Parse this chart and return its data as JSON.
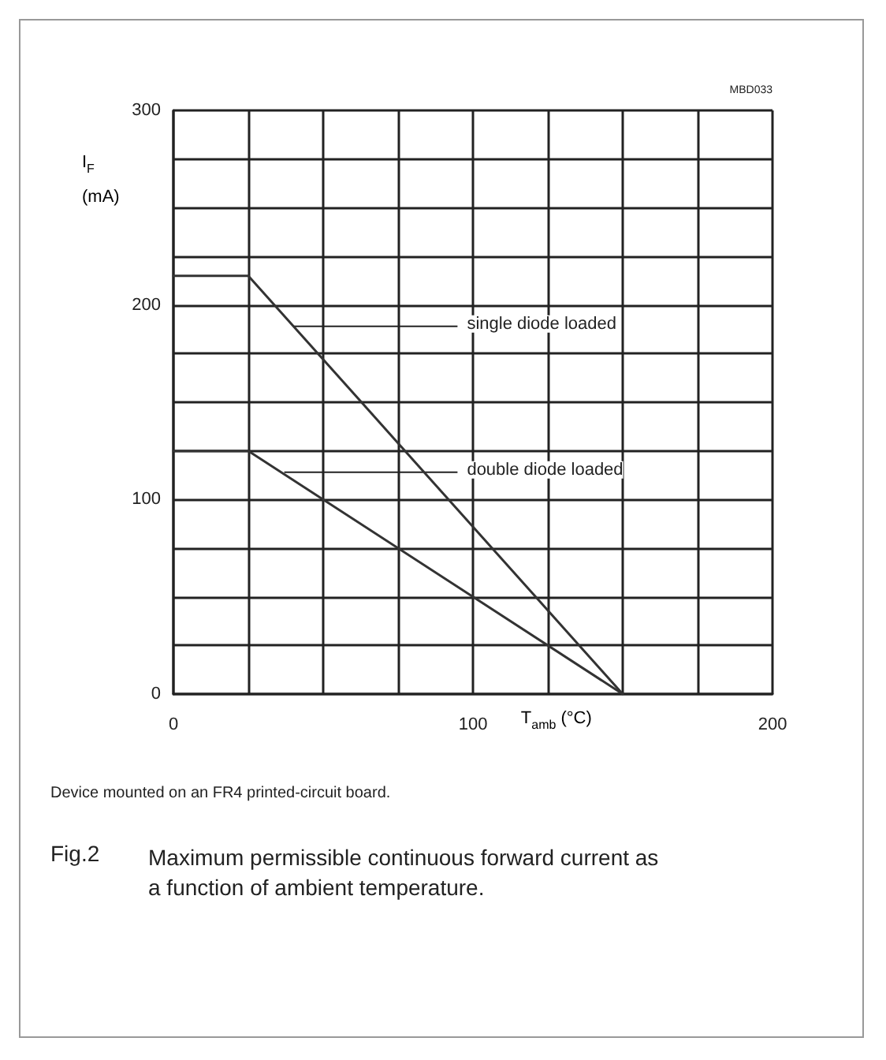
{
  "chart_data": {
    "type": "line",
    "title": "Fig.2    Maximum permissible continuous forward current as a function of ambient temperature.",
    "xlabel": "T$_{amb}$ (°C)",
    "ylabel": "I$_{F}$ (mA)",
    "annotations": [
      "MBD033",
      {
        "text": "single diode loaded",
        "x": 40,
        "y": 189
      },
      {
        "text": "double diode loaded",
        "x": 37,
        "y": 114
      },
      "Device mounted on an FR4 printed-circuit board."
    ],
    "series": [
      {
        "color": "#333333",
        "x": [
          0,
          25,
          150
        ],
        "values": [
          215,
          215,
          0
        ]
      },
      {
        "color": "#333333",
        "x": [
          0,
          25,
          150
        ],
        "values": [
          125,
          125,
          0
        ]
      }
    ],
    "xlim": [
      0,
      200
    ],
    "xticks": [
      0,
      {
        "value": 25,
        "label": null
      },
      {
        "value": 50,
        "label": null
      },
      {
        "value": 75,
        "label": null
      },
      100,
      {
        "value": 125,
        "label": null
      },
      {
        "value": 150,
        "label": null
      },
      {
        "value": 175,
        "label": null
      },
      200
    ],
    "ylim": [
      0,
      300
    ],
    "yticks": [
      0,
      {
        "value": 25,
        "label": null
      },
      {
        "value": 50,
        "label": null
      },
      {
        "value": 75,
        "label": null
      },
      100,
      {
        "value": 125,
        "label": null
      },
      {
        "value": 150,
        "label": null
      },
      {
        "value": 175,
        "label": null
      },
      200,
      {
        "value": 225,
        "label": null
      },
      {
        "value": 250,
        "label": null
      },
      {
        "value": 275,
        "label": null
      },
      300
    ],
    "grid": true,
    "marker": "none",
    "line_style": "solid"
  }
}
